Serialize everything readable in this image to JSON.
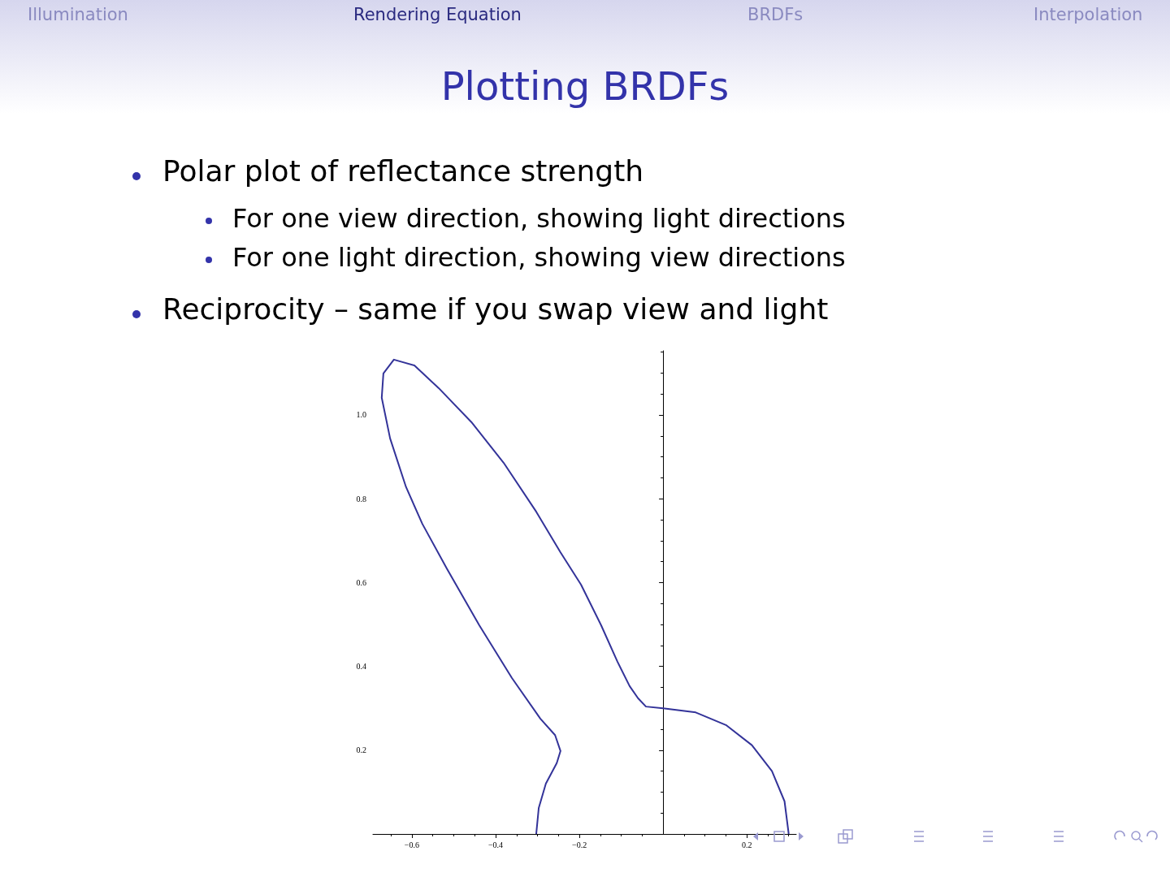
{
  "chart_data": {
    "type": "line",
    "title": "Plotting BRDFs",
    "annotations": [
      "Illumination",
      "Rendering Equation",
      "BRDFs",
      "Interpolation",
      "Polar plot of reflectance strength",
      "For one view direction, showing light directions",
      "For one light direction, showing view directions",
      "Reciprocity – same if you swap view and light"
    ],
    "series": [
      {
        "color": "#333399",
        "x": [
          0.3,
          0.29,
          0.26,
          0.212,
          0.15,
          0.078,
          0.0,
          -0.041,
          -0.06,
          -0.08,
          -0.109,
          -0.148,
          -0.196,
          -0.245,
          -0.303,
          -0.381,
          -0.458,
          -0.536,
          -0.594,
          -0.643,
          -0.668,
          -0.672,
          -0.652,
          -0.614,
          -0.575,
          -0.517,
          -0.439,
          -0.361,
          -0.293,
          -0.258,
          -0.245,
          -0.254,
          -0.28,
          -0.297,
          -0.303
        ],
        "values": [
          0.0,
          0.078,
          0.15,
          0.212,
          0.26,
          0.29,
          0.3,
          0.304,
          0.324,
          0.353,
          0.411,
          0.498,
          0.595,
          0.672,
          0.769,
          0.886,
          0.983,
          1.064,
          1.118,
          1.132,
          1.099,
          1.041,
          0.944,
          0.828,
          0.74,
          0.634,
          0.498,
          0.372,
          0.275,
          0.236,
          0.198,
          0.169,
          0.12,
          0.062,
          0.0
        ]
      }
    ],
    "xlim": [
      -0.693,
      0.318
    ],
    "xticks": [
      {
        "value": -0.6,
        "label": "−0.6"
      },
      {
        "value": -0.4,
        "label": "−0.4"
      },
      {
        "value": -0.2,
        "label": "−0.2"
      },
      0.2
    ],
    "ylim": [
      0,
      1.153
    ],
    "yticks": [
      0.2,
      0.4,
      0.6,
      0.8,
      {
        "value": 1.0,
        "label": "1.0"
      }
    ],
    "marker": "none",
    "line_style": "solid",
    "grid": false
  }
}
